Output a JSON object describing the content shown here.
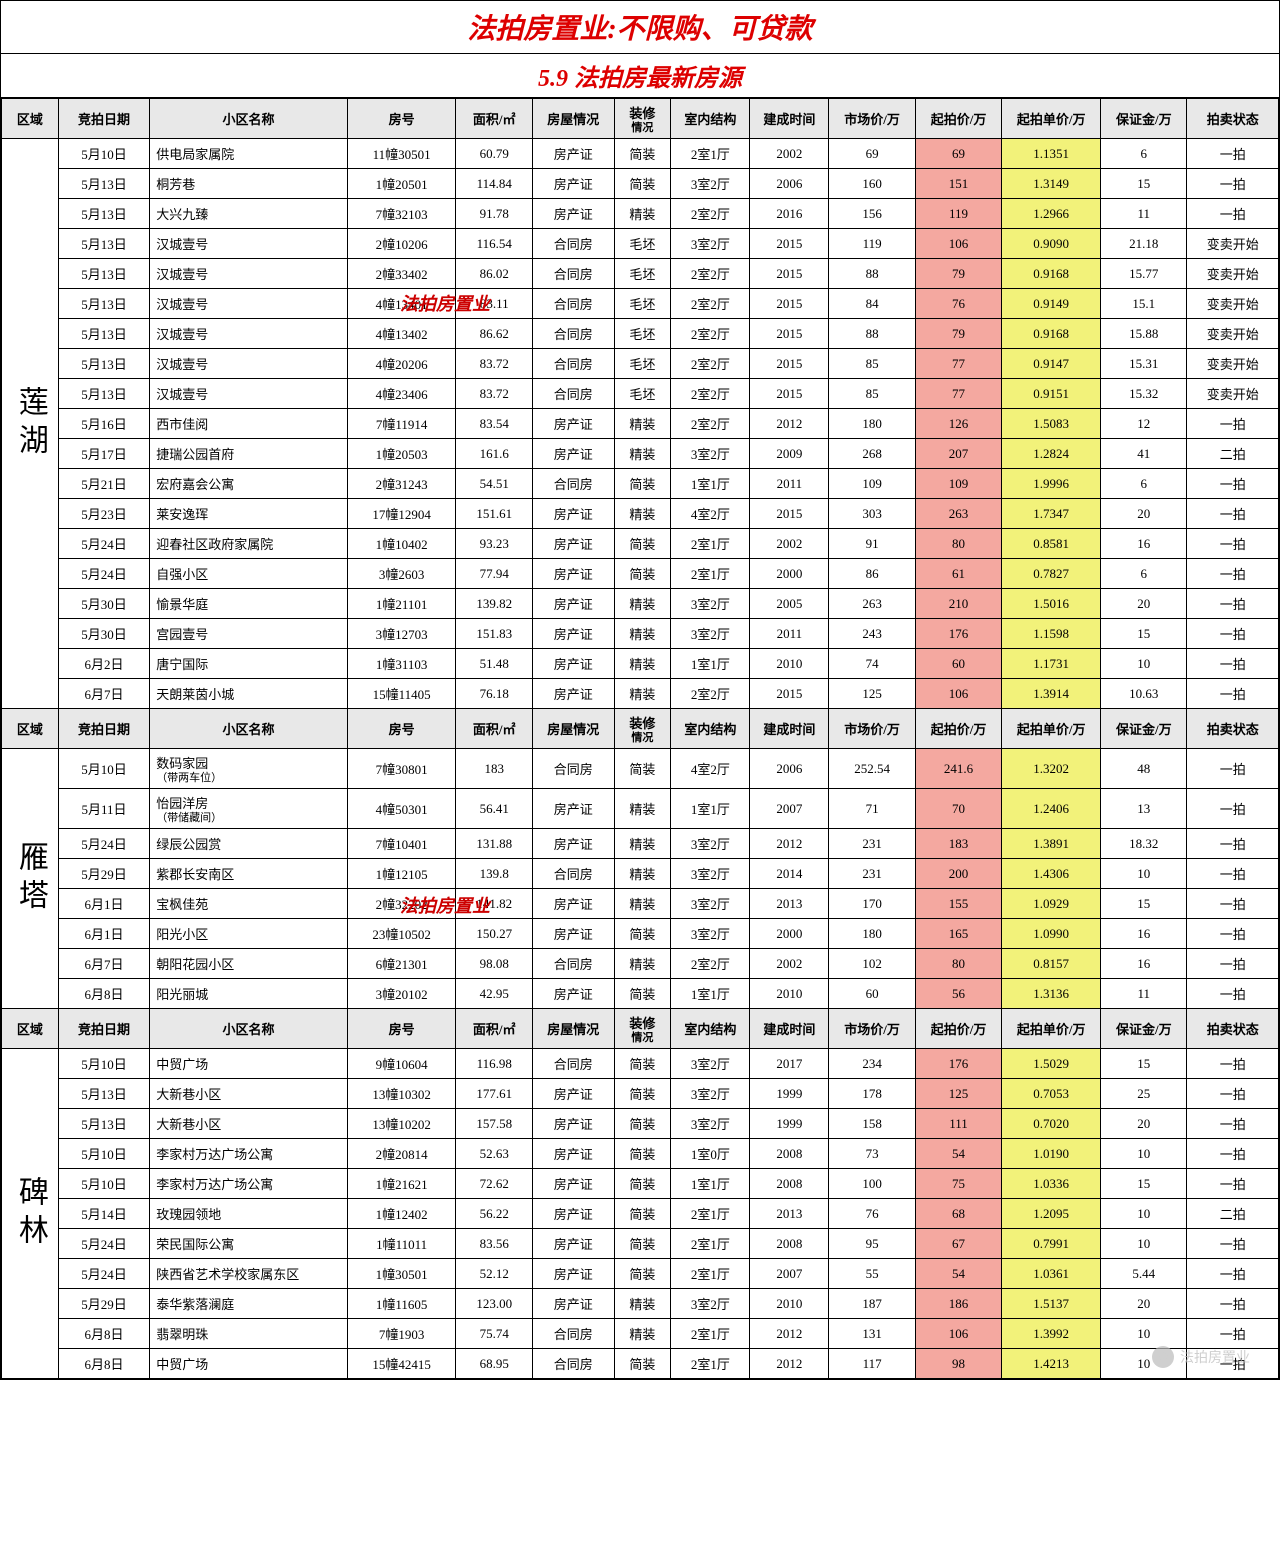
{
  "header": {
    "title1": "法拍房置业:不限购、可贷款",
    "title2": "5.9  法拍房最新房源"
  },
  "watermarks": [
    "法拍房置业",
    "法拍房置业",
    "法拍房置业"
  ],
  "columns": [
    "区域",
    "竞拍日期",
    "小区名称",
    "房号",
    "面积/㎡",
    "房屋情况",
    "装修情况",
    "室内结构",
    "建成时间",
    "市场价/万",
    "起拍价/万",
    "起拍单价/万",
    "保证金/万",
    "拍卖状态"
  ],
  "highlight": {
    "start_price_bg": "#f4a8a0",
    "unit_price_bg": "#f2f27a"
  },
  "sections": [
    {
      "region": "莲湖",
      "rows": [
        [
          "5月10日",
          "供电局家属院",
          "11幢30501",
          "60.79",
          "房产证",
          "简装",
          "2室1厅",
          "2002",
          "69",
          "69",
          "1.1351",
          "6",
          "一拍"
        ],
        [
          "5月13日",
          "桐芳巷",
          "1幢20501",
          "114.84",
          "房产证",
          "简装",
          "3室2厅",
          "2006",
          "160",
          "151",
          "1.3149",
          "15",
          "一拍"
        ],
        [
          "5月13日",
          "大兴九臻",
          "7幢32103",
          "91.78",
          "房产证",
          "精装",
          "2室2厅",
          "2016",
          "156",
          "119",
          "1.2966",
          "11",
          "一拍"
        ],
        [
          "5月13日",
          "汉城壹号",
          "2幢10206",
          "116.54",
          "合同房",
          "毛坯",
          "3室2厅",
          "2015",
          "119",
          "106",
          "0.9090",
          "21.18",
          "变卖开始"
        ],
        [
          "5月13日",
          "汉城壹号",
          "2幢33402",
          "86.02",
          "合同房",
          "毛坯",
          "2室2厅",
          "2015",
          "88",
          "79",
          "0.9168",
          "15.77",
          "变卖开始"
        ],
        [
          "5月13日",
          "汉城壹号",
          "4幢13401",
          "83.11",
          "合同房",
          "毛坯",
          "2室2厅",
          "2015",
          "84",
          "76",
          "0.9149",
          "15.1",
          "变卖开始"
        ],
        [
          "5月13日",
          "汉城壹号",
          "4幢13402",
          "86.62",
          "合同房",
          "毛坯",
          "2室2厅",
          "2015",
          "88",
          "79",
          "0.9168",
          "15.88",
          "变卖开始"
        ],
        [
          "5月13日",
          "汉城壹号",
          "4幢20206",
          "83.72",
          "合同房",
          "毛坯",
          "2室2厅",
          "2015",
          "85",
          "77",
          "0.9147",
          "15.31",
          "变卖开始"
        ],
        [
          "5月13日",
          "汉城壹号",
          "4幢23406",
          "83.72",
          "合同房",
          "毛坯",
          "2室2厅",
          "2015",
          "85",
          "77",
          "0.9151",
          "15.32",
          "变卖开始"
        ],
        [
          "5月16日",
          "西市佳阅",
          "7幢11914",
          "83.54",
          "房产证",
          "精装",
          "2室2厅",
          "2012",
          "180",
          "126",
          "1.5083",
          "12",
          "一拍"
        ],
        [
          "5月17日",
          "捷瑞公园首府",
          "1幢20503",
          "161.6",
          "房产证",
          "精装",
          "3室2厅",
          "2009",
          "268",
          "207",
          "1.2824",
          "41",
          "二拍"
        ],
        [
          "5月21日",
          "宏府嘉会公寓",
          "2幢31243",
          "54.51",
          "合同房",
          "简装",
          "1室1厅",
          "2011",
          "109",
          "109",
          "1.9996",
          "6",
          "一拍"
        ],
        [
          "5月23日",
          "莱安逸珲",
          "17幢12904",
          "151.61",
          "房产证",
          "精装",
          "4室2厅",
          "2015",
          "303",
          "263",
          "1.7347",
          "20",
          "一拍"
        ],
        [
          "5月24日",
          "迎春社区政府家属院",
          "1幢10402",
          "93.23",
          "房产证",
          "简装",
          "2室1厅",
          "2002",
          "91",
          "80",
          "0.8581",
          "16",
          "一拍"
        ],
        [
          "5月24日",
          "自强小区",
          "3幢2603",
          "77.94",
          "房产证",
          "简装",
          "2室1厅",
          "2000",
          "86",
          "61",
          "0.7827",
          "6",
          "一拍"
        ],
        [
          "5月30日",
          "愉景华庭",
          "1幢21101",
          "139.82",
          "房产证",
          "精装",
          "3室2厅",
          "2005",
          "263",
          "210",
          "1.5016",
          "20",
          "一拍"
        ],
        [
          "5月30日",
          "宫园壹号",
          "3幢12703",
          "151.83",
          "房产证",
          "精装",
          "3室2厅",
          "2011",
          "243",
          "176",
          "1.1598",
          "15",
          "一拍"
        ],
        [
          "6月2日",
          "唐宁国际",
          "1幢31103",
          "51.48",
          "房产证",
          "精装",
          "1室1厅",
          "2010",
          "74",
          "60",
          "1.1731",
          "10",
          "一拍"
        ],
        [
          "6月7日",
          "天朗莱茵小城",
          "15幢11405",
          "76.18",
          "房产证",
          "精装",
          "2室2厅",
          "2015",
          "125",
          "106",
          "1.3914",
          "10.63",
          "一拍"
        ]
      ]
    },
    {
      "region": "雁塔",
      "rows": [
        [
          "5月10日",
          "数码家园\n（带两车位）",
          "7幢30801",
          "183",
          "合同房",
          "简装",
          "4室2厅",
          "2006",
          "252.54",
          "241.6",
          "1.3202",
          "48",
          "一拍"
        ],
        [
          "5月11日",
          "怡园洋房\n（带储藏间）",
          "4幢50301",
          "56.41",
          "房产证",
          "精装",
          "1室1厅",
          "2007",
          "71",
          "70",
          "1.2406",
          "13",
          "一拍"
        ],
        [
          "5月24日",
          "绿辰公园赏",
          "7幢10401",
          "131.88",
          "房产证",
          "精装",
          "3室2厅",
          "2012",
          "231",
          "183",
          "1.3891",
          "18.32",
          "一拍"
        ],
        [
          "5月29日",
          "紫郡长安南区",
          "1幢12105",
          "139.8",
          "合同房",
          "精装",
          "3室2厅",
          "2014",
          "231",
          "200",
          "1.4306",
          "10",
          "一拍"
        ],
        [
          "6月1日",
          "宝枫佳苑",
          "2幢32202",
          "141.82",
          "房产证",
          "精装",
          "3室2厅",
          "2013",
          "170",
          "155",
          "1.0929",
          "15",
          "一拍"
        ],
        [
          "6月1日",
          "阳光小区",
          "23幢10502",
          "150.27",
          "房产证",
          "简装",
          "3室2厅",
          "2000",
          "180",
          "165",
          "1.0990",
          "16",
          "一拍"
        ],
        [
          "6月7日",
          "朝阳花园小区",
          "6幢21301",
          "98.08",
          "合同房",
          "精装",
          "2室2厅",
          "2002",
          "102",
          "80",
          "0.8157",
          "16",
          "一拍"
        ],
        [
          "6月8日",
          "阳光丽城",
          "3幢20102",
          "42.95",
          "房产证",
          "简装",
          "1室1厅",
          "2010",
          "60",
          "56",
          "1.3136",
          "11",
          "一拍"
        ]
      ]
    },
    {
      "region": "碑林",
      "rows": [
        [
          "5月10日",
          "中贸广场",
          "9幢10604",
          "116.98",
          "合同房",
          "简装",
          "3室2厅",
          "2017",
          "234",
          "176",
          "1.5029",
          "15",
          "一拍"
        ],
        [
          "5月13日",
          "大新巷小区",
          "13幢10302",
          "177.61",
          "房产证",
          "简装",
          "3室2厅",
          "1999",
          "178",
          "125",
          "0.7053",
          "25",
          "一拍"
        ],
        [
          "5月13日",
          "大新巷小区",
          "13幢10202",
          "157.58",
          "房产证",
          "简装",
          "3室2厅",
          "1999",
          "158",
          "111",
          "0.7020",
          "20",
          "一拍"
        ],
        [
          "5月10日",
          "李家村万达广场公寓",
          "2幢20814",
          "52.63",
          "房产证",
          "简装",
          "1室0厅",
          "2008",
          "73",
          "54",
          "1.0190",
          "10",
          "一拍"
        ],
        [
          "5月10日",
          "李家村万达广场公寓",
          "1幢21621",
          "72.62",
          "房产证",
          "简装",
          "1室1厅",
          "2008",
          "100",
          "75",
          "1.0336",
          "15",
          "一拍"
        ],
        [
          "5月14日",
          "玫瑰园领地",
          "1幢12402",
          "56.22",
          "房产证",
          "简装",
          "2室1厅",
          "2013",
          "76",
          "68",
          "1.2095",
          "10",
          "二拍"
        ],
        [
          "5月24日",
          "荣民国际公寓",
          "1幢11011",
          "83.56",
          "房产证",
          "简装",
          "2室1厅",
          "2008",
          "95",
          "67",
          "0.7991",
          "10",
          "一拍"
        ],
        [
          "5月24日",
          "陕西省艺术学校家属东区",
          "1幢30501",
          "52.12",
          "房产证",
          "简装",
          "2室1厅",
          "2007",
          "55",
          "54",
          "1.0361",
          "5.44",
          "一拍"
        ],
        [
          "5月29日",
          "泰华紫落澜庭",
          "1幢11605",
          "123.00",
          "房产证",
          "精装",
          "3室2厅",
          "2010",
          "187",
          "186",
          "1.5137",
          "20",
          "一拍"
        ],
        [
          "6月8日",
          "翡翠明珠",
          "7幢1903",
          "75.74",
          "合同房",
          "精装",
          "2室1厅",
          "2012",
          "131",
          "106",
          "1.3992",
          "10",
          "一拍"
        ],
        [
          "6月8日",
          "中贸广场",
          "15幢42415",
          "68.95",
          "合同房",
          "简装",
          "2室1厅",
          "2012",
          "117",
          "98",
          "1.4213",
          "10",
          "一拍"
        ]
      ]
    }
  ]
}
